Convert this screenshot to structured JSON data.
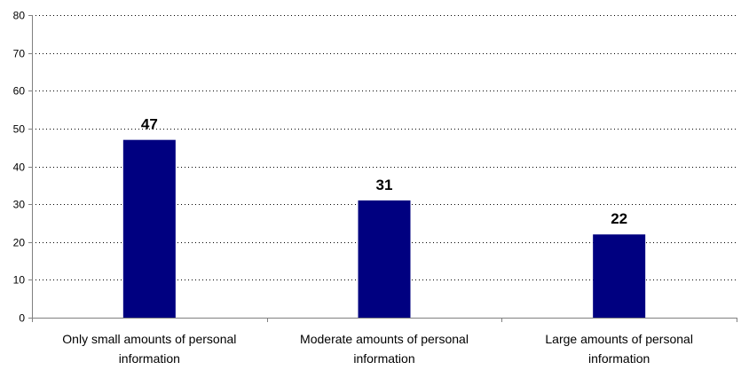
{
  "chart_data": {
    "type": "bar",
    "categories": [
      [
        "Only small amounts of personal",
        "information"
      ],
      [
        "Moderate amounts of personal",
        "information"
      ],
      [
        "Large amounts of personal",
        "information"
      ]
    ],
    "values": [
      47,
      31,
      22
    ],
    "data_labels": [
      "47",
      "31",
      "22"
    ],
    "ylim": [
      0,
      80
    ],
    "yticks": [
      0,
      10,
      20,
      30,
      40,
      50,
      60,
      70,
      80
    ],
    "grid": true,
    "legend": "none",
    "bar_color": "#000080"
  }
}
